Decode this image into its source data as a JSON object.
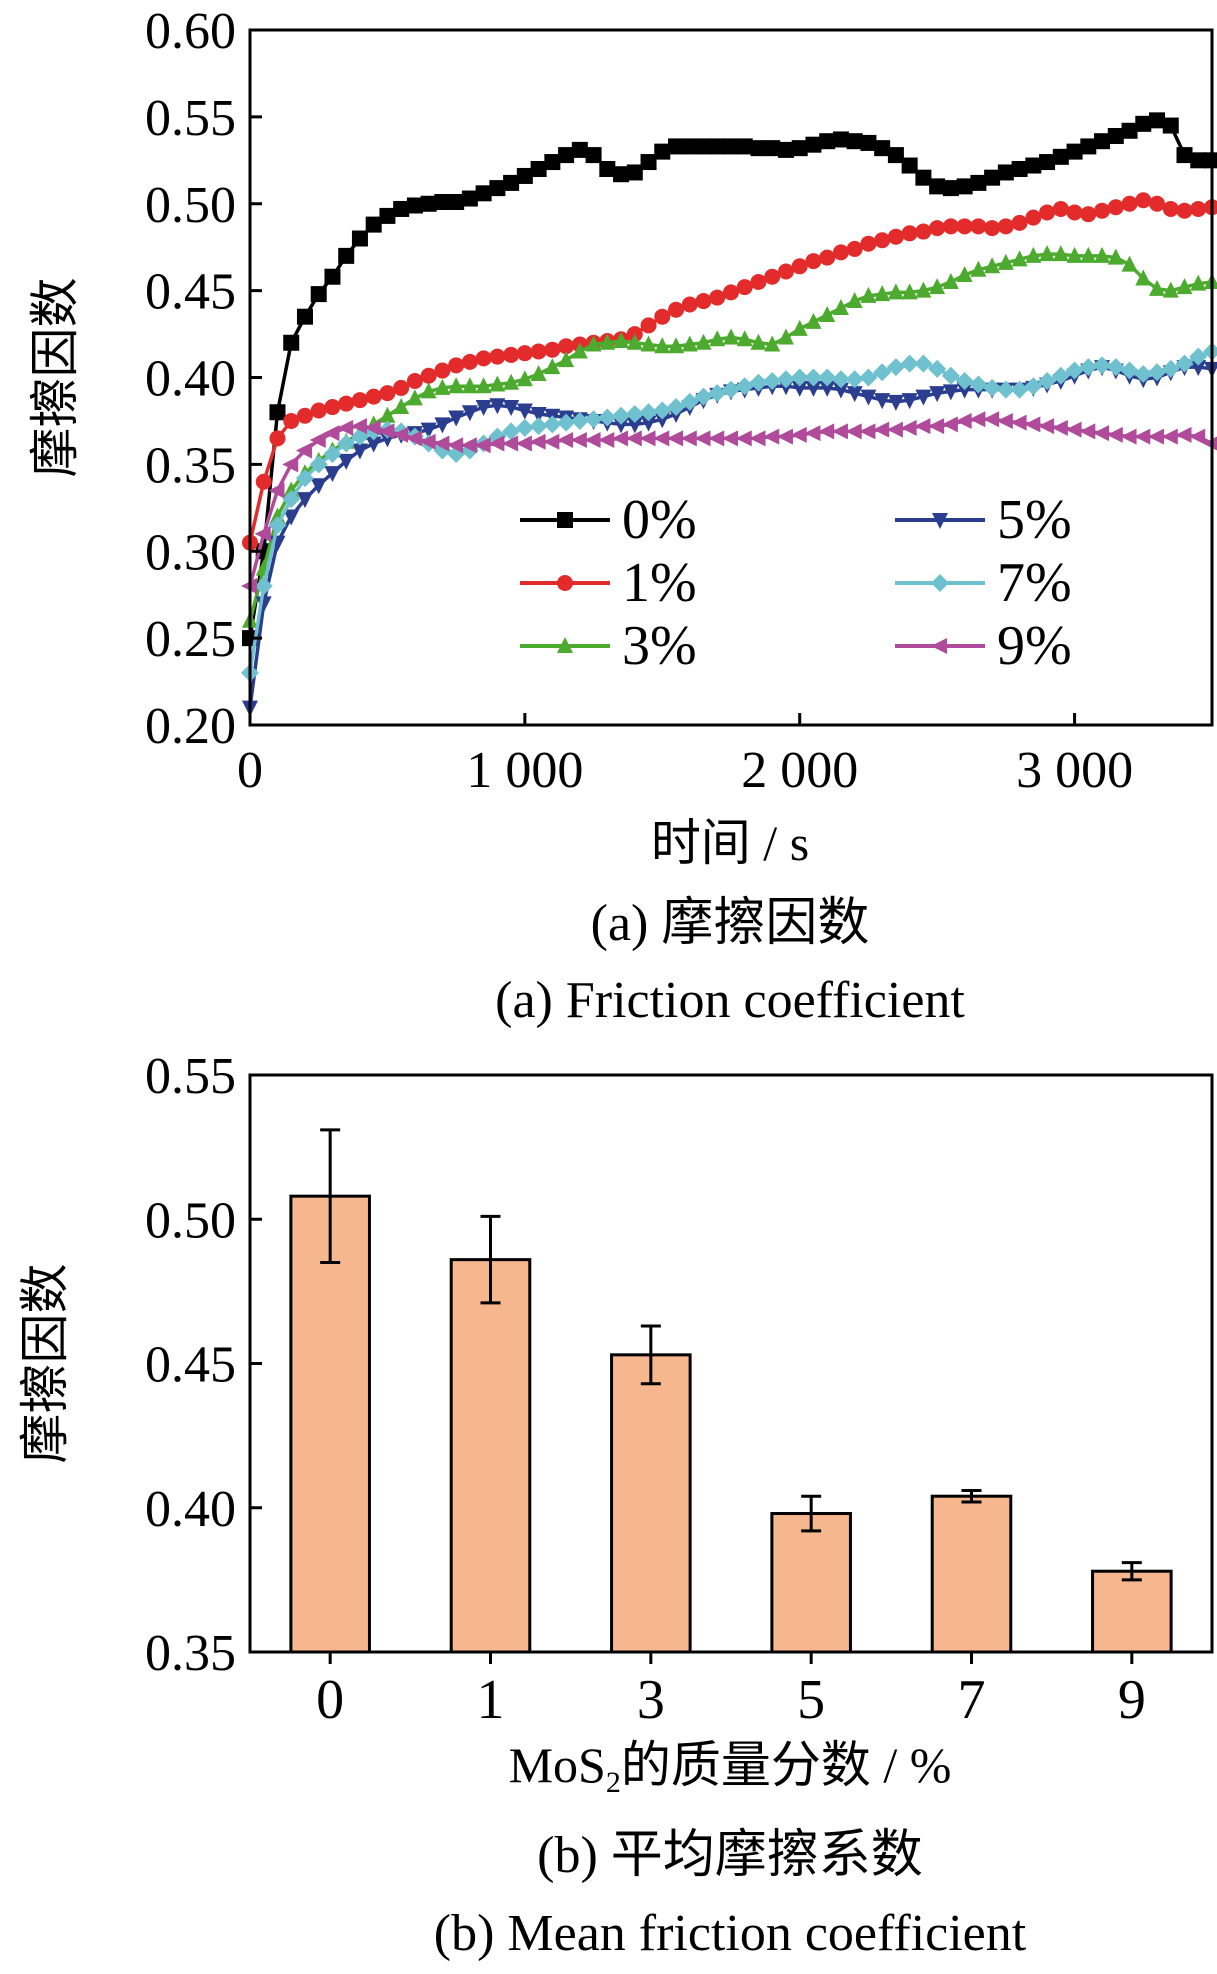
{
  "chart_data": [
    {
      "type": "line",
      "ylabel": "摩擦因数",
      "xlabel": "时间 / s",
      "caption_cn": "(a)  摩擦因数",
      "caption_en": "(a)  Friction coefficient",
      "xlim": [
        0,
        3500
      ],
      "ylim": [
        0.2,
        0.6
      ],
      "xticks": [
        0,
        1000,
        2000,
        3000
      ],
      "xtick_labels": [
        "0",
        "1 000",
        "2 000",
        "3 000"
      ],
      "yticks": [
        0.2,
        0.25,
        0.3,
        0.35,
        0.4,
        0.45,
        0.5,
        0.55,
        0.6
      ],
      "ytick_labels": [
        "0.20",
        "0.25",
        "0.30",
        "0.35",
        "0.40",
        "0.45",
        "0.50",
        "0.55",
        "0.60"
      ],
      "grid": false,
      "legend_position": "center-right",
      "series": [
        {
          "name": "0%",
          "color": "#000000",
          "marker": "square",
          "x": [
            0,
            50,
            100,
            150,
            200,
            250,
            300,
            350,
            400,
            450,
            500,
            550,
            600,
            650,
            700,
            750,
            800,
            850,
            900,
            950,
            1000,
            1050,
            1100,
            1150,
            1200,
            1250,
            1300,
            1350,
            1400,
            1450,
            1500,
            1550,
            1600,
            1650,
            1700,
            1750,
            1800,
            1850,
            1900,
            1950,
            2000,
            2050,
            2100,
            2150,
            2200,
            2250,
            2300,
            2350,
            2400,
            2450,
            2500,
            2550,
            2600,
            2650,
            2700,
            2750,
            2800,
            2850,
            2900,
            2950,
            3000,
            3050,
            3100,
            3150,
            3200,
            3250,
            3300,
            3350,
            3400,
            3450,
            3500
          ],
          "y": [
            0.25,
            0.3,
            0.38,
            0.42,
            0.435,
            0.448,
            0.458,
            0.47,
            0.48,
            0.488,
            0.493,
            0.497,
            0.499,
            0.5,
            0.501,
            0.501,
            0.503,
            0.506,
            0.509,
            0.512,
            0.516,
            0.52,
            0.524,
            0.528,
            0.531,
            0.528,
            0.52,
            0.517,
            0.518,
            0.524,
            0.53,
            0.533,
            0.533,
            0.533,
            0.533,
            0.533,
            0.533,
            0.532,
            0.532,
            0.531,
            0.532,
            0.534,
            0.536,
            0.537,
            0.536,
            0.535,
            0.532,
            0.528,
            0.522,
            0.515,
            0.51,
            0.509,
            0.51,
            0.512,
            0.515,
            0.518,
            0.52,
            0.522,
            0.524,
            0.527,
            0.53,
            0.533,
            0.536,
            0.539,
            0.542,
            0.546,
            0.548,
            0.545,
            0.528,
            0.525,
            0.525
          ]
        },
        {
          "name": "1%",
          "color": "#e32b2b",
          "marker": "circle",
          "x": [
            0,
            50,
            100,
            150,
            200,
            250,
            300,
            350,
            400,
            450,
            500,
            550,
            600,
            650,
            700,
            750,
            800,
            850,
            900,
            950,
            1000,
            1050,
            1100,
            1150,
            1200,
            1250,
            1300,
            1350,
            1400,
            1450,
            1500,
            1550,
            1600,
            1650,
            1700,
            1750,
            1800,
            1850,
            1900,
            1950,
            2000,
            2050,
            2100,
            2150,
            2200,
            2250,
            2300,
            2350,
            2400,
            2450,
            2500,
            2550,
            2600,
            2650,
            2700,
            2750,
            2800,
            2850,
            2900,
            2950,
            3000,
            3050,
            3100,
            3150,
            3200,
            3250,
            3300,
            3350,
            3400,
            3450,
            3500
          ],
          "y": [
            0.305,
            0.34,
            0.365,
            0.375,
            0.378,
            0.381,
            0.383,
            0.385,
            0.387,
            0.389,
            0.391,
            0.394,
            0.398,
            0.401,
            0.404,
            0.407,
            0.409,
            0.411,
            0.412,
            0.413,
            0.414,
            0.415,
            0.416,
            0.418,
            0.419,
            0.42,
            0.421,
            0.422,
            0.425,
            0.43,
            0.435,
            0.439,
            0.442,
            0.444,
            0.446,
            0.449,
            0.452,
            0.455,
            0.458,
            0.461,
            0.464,
            0.467,
            0.469,
            0.472,
            0.474,
            0.477,
            0.479,
            0.481,
            0.483,
            0.484,
            0.486,
            0.487,
            0.487,
            0.487,
            0.486,
            0.487,
            0.489,
            0.492,
            0.495,
            0.497,
            0.495,
            0.494,
            0.496,
            0.498,
            0.5,
            0.502,
            0.5,
            0.497,
            0.496,
            0.497,
            0.498
          ]
        },
        {
          "name": "3%",
          "color": "#4caa2e",
          "marker": "triangle-up",
          "x": [
            0,
            50,
            100,
            150,
            200,
            250,
            300,
            350,
            400,
            450,
            500,
            550,
            600,
            650,
            700,
            750,
            800,
            850,
            900,
            950,
            1000,
            1050,
            1100,
            1150,
            1200,
            1250,
            1300,
            1350,
            1400,
            1450,
            1500,
            1550,
            1600,
            1650,
            1700,
            1750,
            1800,
            1850,
            1900,
            1950,
            2000,
            2050,
            2100,
            2150,
            2200,
            2250,
            2300,
            2350,
            2400,
            2450,
            2500,
            2550,
            2600,
            2650,
            2700,
            2750,
            2800,
            2850,
            2900,
            2950,
            3000,
            3050,
            3100,
            3150,
            3200,
            3250,
            3300,
            3350,
            3400,
            3450,
            3500
          ],
          "y": [
            0.26,
            0.29,
            0.32,
            0.335,
            0.345,
            0.352,
            0.358,
            0.363,
            0.368,
            0.373,
            0.378,
            0.383,
            0.388,
            0.392,
            0.394,
            0.395,
            0.395,
            0.395,
            0.396,
            0.397,
            0.399,
            0.402,
            0.406,
            0.41,
            0.415,
            0.419,
            0.42,
            0.421,
            0.42,
            0.419,
            0.418,
            0.418,
            0.419,
            0.42,
            0.422,
            0.423,
            0.422,
            0.42,
            0.419,
            0.423,
            0.428,
            0.432,
            0.436,
            0.44,
            0.444,
            0.447,
            0.448,
            0.449,
            0.449,
            0.45,
            0.452,
            0.455,
            0.459,
            0.462,
            0.464,
            0.466,
            0.468,
            0.47,
            0.471,
            0.471,
            0.47,
            0.47,
            0.47,
            0.469,
            0.465,
            0.457,
            0.451,
            0.45,
            0.452,
            0.454,
            0.455
          ]
        },
        {
          "name": "5%",
          "color": "#2a3d8f",
          "marker": "triangle-down",
          "x": [
            0,
            50,
            100,
            150,
            200,
            250,
            300,
            350,
            400,
            450,
            500,
            550,
            600,
            650,
            700,
            750,
            800,
            850,
            900,
            950,
            1000,
            1050,
            1100,
            1150,
            1200,
            1250,
            1300,
            1350,
            1400,
            1450,
            1500,
            1550,
            1600,
            1650,
            1700,
            1750,
            1800,
            1850,
            1900,
            1950,
            2000,
            2050,
            2100,
            2150,
            2200,
            2250,
            2300,
            2350,
            2400,
            2450,
            2500,
            2550,
            2600,
            2650,
            2700,
            2750,
            2800,
            2850,
            2900,
            2950,
            3000,
            3050,
            3100,
            3150,
            3200,
            3250,
            3300,
            3350,
            3400,
            3450,
            3500
          ],
          "y": [
            0.21,
            0.27,
            0.305,
            0.32,
            0.33,
            0.338,
            0.345,
            0.352,
            0.358,
            0.362,
            0.365,
            0.367,
            0.368,
            0.37,
            0.373,
            0.377,
            0.38,
            0.383,
            0.384,
            0.383,
            0.381,
            0.379,
            0.378,
            0.377,
            0.376,
            0.375,
            0.374,
            0.373,
            0.373,
            0.374,
            0.376,
            0.379,
            0.383,
            0.387,
            0.39,
            0.392,
            0.393,
            0.394,
            0.395,
            0.395,
            0.394,
            0.394,
            0.394,
            0.393,
            0.391,
            0.389,
            0.387,
            0.386,
            0.387,
            0.389,
            0.391,
            0.392,
            0.393,
            0.393,
            0.393,
            0.393,
            0.393,
            0.394,
            0.396,
            0.398,
            0.401,
            0.404,
            0.406,
            0.404,
            0.401,
            0.399,
            0.4,
            0.403,
            0.406,
            0.406,
            0.405
          ]
        },
        {
          "name": "7%",
          "color": "#6fc1cf",
          "marker": "diamond",
          "x": [
            0,
            50,
            100,
            150,
            200,
            250,
            300,
            350,
            400,
            450,
            500,
            550,
            600,
            650,
            700,
            750,
            800,
            850,
            900,
            950,
            1000,
            1050,
            1100,
            1150,
            1200,
            1250,
            1300,
            1350,
            1400,
            1450,
            1500,
            1550,
            1600,
            1650,
            1700,
            1750,
            1800,
            1850,
            1900,
            1950,
            2000,
            2050,
            2100,
            2150,
            2200,
            2250,
            2300,
            2350,
            2400,
            2450,
            2500,
            2550,
            2600,
            2650,
            2700,
            2750,
            2800,
            2850,
            2900,
            2950,
            3000,
            3050,
            3100,
            3150,
            3200,
            3250,
            3300,
            3350,
            3400,
            3450,
            3500
          ],
          "y": [
            0.23,
            0.28,
            0.315,
            0.33,
            0.342,
            0.35,
            0.356,
            0.362,
            0.366,
            0.369,
            0.37,
            0.369,
            0.366,
            0.362,
            0.358,
            0.356,
            0.358,
            0.362,
            0.366,
            0.369,
            0.371,
            0.372,
            0.373,
            0.374,
            0.375,
            0.376,
            0.377,
            0.378,
            0.379,
            0.38,
            0.381,
            0.383,
            0.386,
            0.389,
            0.391,
            0.393,
            0.395,
            0.397,
            0.398,
            0.399,
            0.4,
            0.4,
            0.4,
            0.399,
            0.399,
            0.4,
            0.403,
            0.406,
            0.408,
            0.408,
            0.405,
            0.401,
            0.398,
            0.396,
            0.394,
            0.393,
            0.393,
            0.395,
            0.398,
            0.401,
            0.404,
            0.406,
            0.407,
            0.406,
            0.404,
            0.402,
            0.403,
            0.405,
            0.408,
            0.412,
            0.415
          ]
        },
        {
          "name": "9%",
          "color": "#b04a9b",
          "marker": "triangle-left",
          "x": [
            0,
            50,
            100,
            150,
            200,
            250,
            300,
            350,
            400,
            450,
            500,
            550,
            600,
            650,
            700,
            750,
            800,
            850,
            900,
            950,
            1000,
            1050,
            1100,
            1150,
            1200,
            1250,
            1300,
            1350,
            1400,
            1450,
            1500,
            1550,
            1600,
            1650,
            1700,
            1750,
            1800,
            1850,
            1900,
            1950,
            2000,
            2050,
            2100,
            2150,
            2200,
            2250,
            2300,
            2350,
            2400,
            2450,
            2500,
            2550,
            2600,
            2650,
            2700,
            2750,
            2800,
            2850,
            2900,
            2950,
            3000,
            3050,
            3100,
            3150,
            3200,
            3250,
            3300,
            3350,
            3400,
            3450,
            3500
          ],
          "y": [
            0.28,
            0.31,
            0.335,
            0.35,
            0.358,
            0.364,
            0.368,
            0.371,
            0.372,
            0.371,
            0.369,
            0.367,
            0.365,
            0.363,
            0.362,
            0.361,
            0.361,
            0.361,
            0.362,
            0.362,
            0.362,
            0.363,
            0.363,
            0.364,
            0.364,
            0.364,
            0.364,
            0.365,
            0.365,
            0.365,
            0.365,
            0.365,
            0.365,
            0.365,
            0.365,
            0.365,
            0.365,
            0.365,
            0.366,
            0.366,
            0.367,
            0.368,
            0.369,
            0.369,
            0.369,
            0.369,
            0.37,
            0.37,
            0.371,
            0.372,
            0.372,
            0.373,
            0.375,
            0.376,
            0.376,
            0.375,
            0.374,
            0.373,
            0.372,
            0.371,
            0.37,
            0.369,
            0.368,
            0.367,
            0.366,
            0.366,
            0.366,
            0.366,
            0.367,
            0.366,
            0.362
          ]
        }
      ]
    },
    {
      "type": "bar",
      "ylabel": "摩擦因数",
      "xlabel_prefix": "MoS",
      "xlabel_sub": "2",
      "xlabel_suffix": "的质量分数 / %",
      "caption_cn": "(b)  平均摩擦系数",
      "caption_en": "(b)  Mean friction coefficient",
      "categories": [
        "0",
        "1",
        "3",
        "5",
        "7",
        "9"
      ],
      "values": [
        0.508,
        0.486,
        0.453,
        0.398,
        0.404,
        0.378
      ],
      "errors": [
        0.023,
        0.015,
        0.01,
        0.006,
        0.002,
        0.003
      ],
      "ylim": [
        0.35,
        0.55
      ],
      "yticks": [
        0.35,
        0.4,
        0.45,
        0.5,
        0.55
      ],
      "ytick_labels": [
        "0.35",
        "0.40",
        "0.45",
        "0.50",
        "0.55"
      ],
      "bar_color": "#f7b78e",
      "grid": false
    }
  ]
}
